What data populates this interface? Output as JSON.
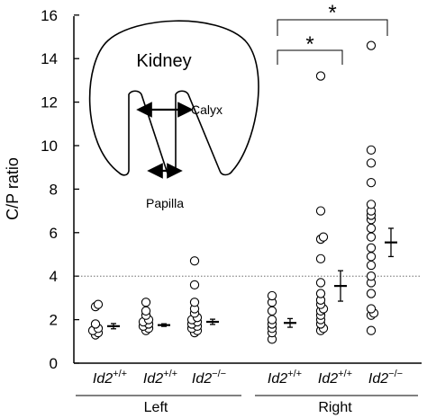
{
  "chart_data": {
    "type": "scatter",
    "ylabel": "C/P ratio",
    "ylim": [
      0,
      16
    ],
    "yticks": [
      "0",
      "2",
      "4",
      "6",
      "8",
      "10",
      "12",
      "14",
      "16"
    ],
    "reference_line": {
      "y": 4,
      "style": "dotted"
    },
    "groups": [
      {
        "side": "Left",
        "genotype": "Id2",
        "sup": "+/+",
        "points": [
          2.7,
          2.6,
          1.8,
          1.6,
          1.5,
          1.4,
          1.3
        ],
        "mean": 1.7,
        "sem": 0.12
      },
      {
        "side": "Left",
        "genotype": "Id2",
        "sup": "+/+",
        "points": [
          2.8,
          2.4,
          2.2,
          2.0,
          1.9,
          1.8,
          1.7,
          1.6,
          1.5
        ],
        "mean": 1.75,
        "sem": 0.06
      },
      {
        "side": "Left",
        "genotype": "Id2",
        "sup": "−/−",
        "points": [
          4.7,
          3.6,
          2.8,
          2.5,
          2.3,
          2.1,
          2.0,
          1.9,
          1.8,
          1.7,
          1.6,
          1.5,
          1.4
        ],
        "mean": 1.9,
        "sem": 0.12
      },
      {
        "side": "Right",
        "genotype": "Id2",
        "sup": "+/+",
        "points": [
          3.1,
          2.8,
          2.4,
          2.0,
          1.8,
          1.6,
          1.4,
          1.1
        ],
        "mean": 1.85,
        "sem": 0.2
      },
      {
        "side": "Right",
        "genotype": "Id2",
        "sup": "+/+",
        "points": [
          13.2,
          7.0,
          5.8,
          5.7,
          4.8,
          3.7,
          3.2,
          2.9,
          2.7,
          2.5,
          2.4,
          2.2,
          2.0,
          1.8,
          1.6,
          1.5
        ],
        "mean": 3.55,
        "sem": 0.7
      },
      {
        "side": "Right",
        "genotype": "Id2",
        "sup": "−/−",
        "points": [
          14.6,
          9.8,
          9.2,
          8.3,
          7.3,
          7.0,
          6.8,
          6.6,
          6.2,
          5.8,
          5.3,
          4.9,
          4.5,
          4.0,
          3.7,
          3.2,
          2.5,
          2.3,
          2.2,
          1.5
        ],
        "mean": 5.55,
        "sem": 0.65
      }
    ],
    "side_labels": [
      "Left",
      "Right"
    ],
    "significance": [
      {
        "from_group": 3,
        "to_group": 4,
        "label": "*"
      },
      {
        "from_group": 3,
        "to_group": 5,
        "label": "*"
      }
    ]
  },
  "inset": {
    "title": "Kidney",
    "calyx_label": "Calyx",
    "papilla_label": "Papilla"
  }
}
